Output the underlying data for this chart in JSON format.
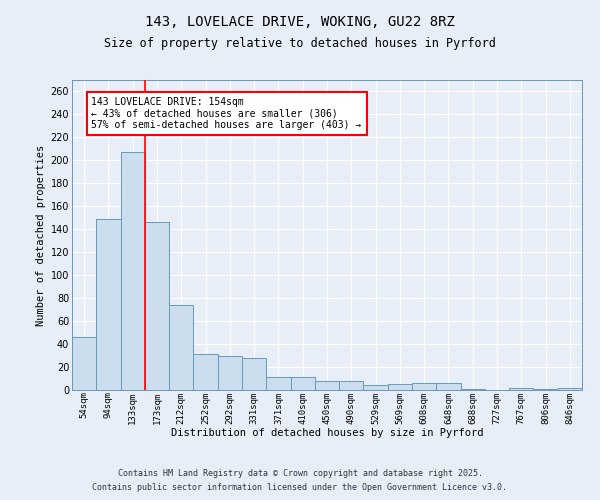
{
  "title_line1": "143, LOVELACE DRIVE, WOKING, GU22 8RZ",
  "title_line2": "Size of property relative to detached houses in Pyrford",
  "xlabel": "Distribution of detached houses by size in Pyrford",
  "ylabel": "Number of detached properties",
  "bar_color": "#ccdded",
  "bar_edge_color": "#6699bb",
  "background_color": "#e8eef8",
  "grid_color": "#ffffff",
  "categories": [
    "54sqm",
    "94sqm",
    "133sqm",
    "173sqm",
    "212sqm",
    "252sqm",
    "292sqm",
    "331sqm",
    "371sqm",
    "410sqm",
    "450sqm",
    "490sqm",
    "529sqm",
    "569sqm",
    "608sqm",
    "648sqm",
    "688sqm",
    "727sqm",
    "767sqm",
    "806sqm",
    "846sqm"
  ],
  "values": [
    46,
    149,
    207,
    146,
    74,
    31,
    30,
    28,
    11,
    11,
    8,
    8,
    4,
    5,
    6,
    6,
    1,
    0,
    2,
    1,
    2
  ],
  "red_line_x": 2.5,
  "annotation_text": "143 LOVELACE DRIVE: 154sqm\n← 43% of detached houses are smaller (306)\n57% of semi-detached houses are larger (403) →",
  "footer1": "Contains HM Land Registry data © Crown copyright and database right 2025.",
  "footer2": "Contains public sector information licensed under the Open Government Licence v3.0.",
  "ylim": [
    0,
    270
  ],
  "yticks": [
    0,
    20,
    40,
    60,
    80,
    100,
    120,
    140,
    160,
    180,
    200,
    220,
    240,
    260
  ]
}
